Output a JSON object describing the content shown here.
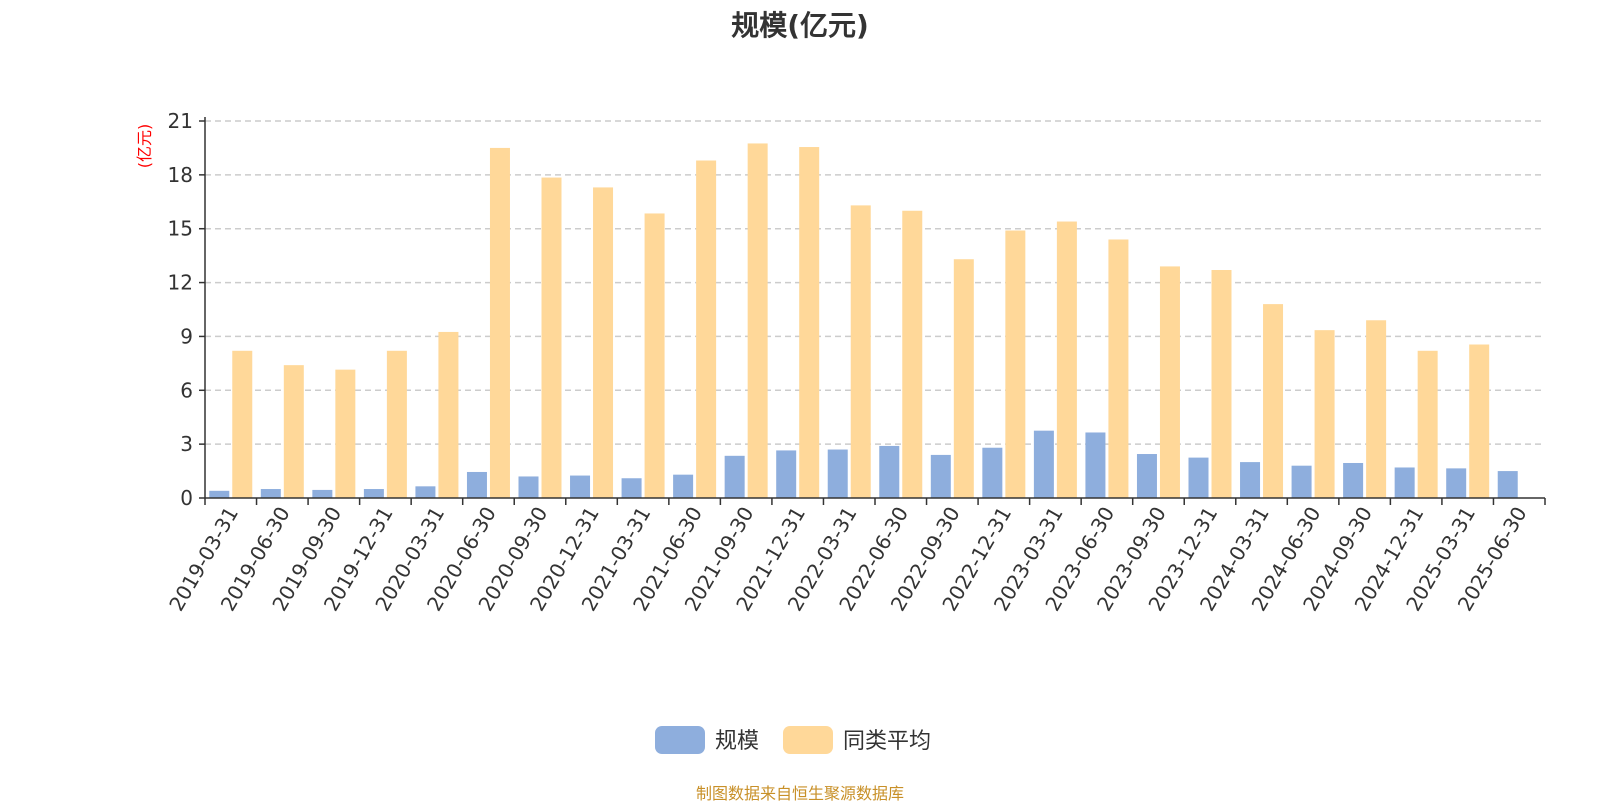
{
  "chart_data": {
    "type": "bar",
    "title": "规模(亿元)",
    "ylabel": "(亿元)",
    "ylim": [
      0,
      21
    ],
    "yticks": [
      0,
      3,
      6,
      9,
      12,
      15,
      18,
      21
    ],
    "grid": true,
    "legend_position": "bottom-center",
    "categories": [
      "2019-03-31",
      "2019-06-30",
      "2019-09-30",
      "2019-12-31",
      "2020-03-31",
      "2020-06-30",
      "2020-09-30",
      "2020-12-31",
      "2021-03-31",
      "2021-06-30",
      "2021-09-30",
      "2021-12-31",
      "2022-03-31",
      "2022-06-30",
      "2022-09-30",
      "2022-12-31",
      "2023-03-31",
      "2023-06-30",
      "2023-09-30",
      "2023-12-31",
      "2024-03-31",
      "2024-06-30",
      "2024-09-30",
      "2024-12-31",
      "2025-03-31",
      "2025-06-30"
    ],
    "series": [
      {
        "name": "规模",
        "color": "#8eaedd",
        "values": [
          0.4,
          0.5,
          0.45,
          0.5,
          0.65,
          1.45,
          1.2,
          1.25,
          1.1,
          1.3,
          2.35,
          2.65,
          2.7,
          2.9,
          2.4,
          2.8,
          3.75,
          3.65,
          2.45,
          2.25,
          2.0,
          1.8,
          1.95,
          1.7,
          1.65,
          1.5
        ]
      },
      {
        "name": "同类平均",
        "color": "#ffd899",
        "values": [
          8.2,
          7.4,
          7.15,
          8.2,
          9.25,
          19.5,
          17.85,
          17.3,
          15.85,
          18.8,
          19.75,
          19.55,
          16.3,
          16.0,
          13.3,
          14.9,
          15.4,
          14.4,
          12.9,
          12.7,
          10.8,
          9.35,
          9.9,
          8.2,
          8.55,
          null
        ]
      }
    ]
  },
  "source_note": "制图数据来自恒生聚源数据库"
}
